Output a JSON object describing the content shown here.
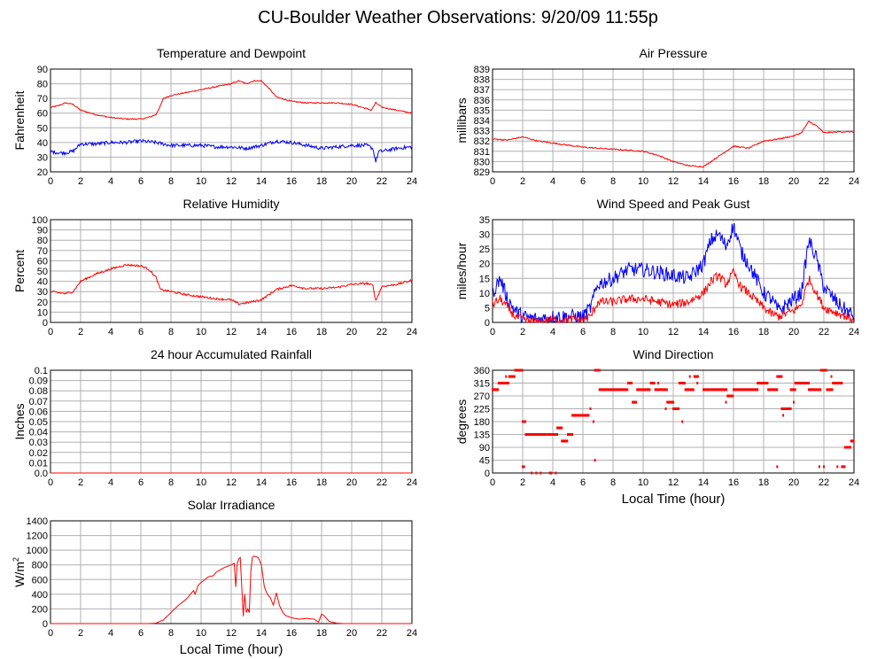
{
  "page_title": "CU-Boulder Weather Observations: 9/20/09 11:55p",
  "x_ticks": [
    "0",
    "2",
    "4",
    "6",
    "8",
    "10",
    "12",
    "14",
    "16",
    "18",
    "20",
    "22",
    "24"
  ],
  "time_axis_label": "Local Time (hour)",
  "colors": {
    "red": "#ff0000",
    "blue": "#0000ff",
    "grid": "#b0b0b0",
    "axis": "#000000"
  },
  "chart_data": [
    {
      "id": "temp",
      "type": "line",
      "title": "Temperature and Dewpoint",
      "ylabel": "Fahrenheit",
      "xlabel": "",
      "xlim": [
        0,
        24
      ],
      "ylim": [
        20,
        90
      ],
      "y_ticks": [
        "20",
        "30",
        "40",
        "50",
        "60",
        "70",
        "80",
        "90"
      ],
      "grid": true,
      "series": [
        {
          "color": "#ff0000",
          "noise": 0.4,
          "x": [
            0,
            0.5,
            1,
            1.5,
            2,
            3,
            4,
            5,
            6,
            6.5,
            7,
            7.3,
            7.5,
            8,
            9,
            10,
            11,
            12,
            12.5,
            13,
            13.5,
            14,
            14.5,
            15,
            16,
            17,
            18,
            19,
            20,
            21,
            21.3,
            21.6,
            22,
            23,
            24
          ],
          "y": [
            64,
            65,
            67,
            66,
            62,
            59,
            57,
            56,
            56,
            57,
            59,
            65,
            70,
            72,
            74,
            76,
            78,
            80,
            82,
            80,
            82,
            82,
            77,
            71,
            68,
            67,
            67,
            67,
            66,
            63,
            62,
            67,
            64,
            62,
            60
          ]
        },
        {
          "color": "#0000ff",
          "noise": 1.2,
          "x": [
            0,
            0.5,
            1,
            1.5,
            2,
            3,
            4,
            5,
            6,
            7,
            8,
            9,
            10,
            11,
            12,
            13,
            14,
            15,
            16,
            17,
            18,
            19,
            20,
            21,
            21.4,
            21.6,
            21.8,
            22,
            23,
            24
          ],
          "y": [
            34,
            33,
            33,
            34,
            39,
            39,
            40,
            40,
            41,
            40,
            38,
            38,
            38,
            37,
            37,
            36,
            38,
            41,
            40,
            38,
            36,
            37,
            38,
            38,
            36,
            27,
            34,
            34,
            36,
            37
          ]
        }
      ]
    },
    {
      "id": "pressure",
      "type": "line",
      "title": "Air Pressure",
      "ylabel": "millibars",
      "xlabel": "",
      "xlim": [
        0,
        24
      ],
      "ylim": [
        829,
        839
      ],
      "y_ticks": [
        "829",
        "830",
        "831",
        "832",
        "833",
        "834",
        "835",
        "836",
        "837",
        "838",
        "839"
      ],
      "grid": true,
      "series": [
        {
          "color": "#ff0000",
          "noise": 0.06,
          "x": [
            0,
            1,
            2,
            3,
            4,
            5,
            6,
            7,
            8,
            9,
            10,
            11,
            12,
            13,
            14,
            15,
            16,
            17,
            18,
            19,
            20,
            20.5,
            21,
            21.5,
            22,
            23,
            24
          ],
          "y": [
            832.2,
            832.1,
            832.4,
            832.0,
            831.8,
            831.6,
            831.4,
            831.3,
            831.2,
            831.1,
            831.0,
            830.6,
            830.0,
            829.6,
            829.5,
            830.5,
            831.5,
            831.3,
            832.0,
            832.2,
            832.5,
            832.8,
            833.9,
            833.5,
            832.8,
            832.9,
            832.9
          ]
        }
      ]
    },
    {
      "id": "humidity",
      "type": "line",
      "title": "Relative Humidity",
      "ylabel": "Percent",
      "xlabel": "",
      "xlim": [
        0,
        24
      ],
      "ylim": [
        0,
        100
      ],
      "y_ticks": [
        "0",
        "10",
        "20",
        "30",
        "40",
        "50",
        "60",
        "70",
        "80",
        "90",
        "100"
      ],
      "grid": true,
      "series": [
        {
          "color": "#ff0000",
          "noise": 1.0,
          "x": [
            0,
            0.5,
            1,
            1.5,
            2,
            3,
            4,
            5,
            6,
            6.5,
            7,
            7.3,
            8,
            9,
            10,
            11,
            12,
            12.5,
            13,
            14,
            15,
            16,
            17,
            18,
            19,
            20,
            21,
            21.4,
            21.6,
            22,
            23,
            24
          ],
          "y": [
            30,
            29,
            28,
            30,
            40,
            47,
            52,
            56,
            55,
            52,
            44,
            32,
            30,
            27,
            25,
            23,
            22,
            18,
            19,
            22,
            32,
            36,
            33,
            33,
            34,
            37,
            38,
            36,
            21,
            35,
            37,
            41
          ]
        }
      ]
    },
    {
      "id": "wind",
      "type": "line",
      "title": "Wind Speed and Peak Gust",
      "ylabel": "miles/hour",
      "xlabel": "",
      "xlim": [
        0,
        24
      ],
      "ylim": [
        0,
        35
      ],
      "y_ticks": [
        "0",
        "5",
        "10",
        "15",
        "20",
        "25",
        "30",
        "35"
      ],
      "grid": true,
      "series": [
        {
          "color": "#0000ff",
          "noise": 2.5,
          "x": [
            0,
            0.5,
            1,
            1.5,
            2,
            3,
            4,
            5,
            6,
            6.5,
            7,
            8,
            9,
            10,
            11,
            12,
            13,
            14,
            14.5,
            15,
            15.5,
            16,
            16.5,
            17,
            18,
            18.5,
            19,
            20,
            20.5,
            21,
            21.5,
            22,
            23,
            24
          ],
          "y": [
            10,
            15,
            8,
            4,
            2,
            1,
            2,
            2,
            2,
            5,
            13,
            15,
            18,
            18,
            17,
            16,
            15,
            20,
            28,
            30,
            26,
            33,
            24,
            20,
            10,
            8,
            4,
            8,
            10,
            28,
            22,
            12,
            6,
            2
          ]
        },
        {
          "color": "#ff0000",
          "noise": 1.5,
          "x": [
            0,
            0.5,
            1,
            1.5,
            2,
            3,
            4,
            5,
            6,
            6.5,
            7,
            8,
            9,
            10,
            11,
            12,
            13,
            14,
            14.5,
            15,
            15.5,
            16,
            16.5,
            17,
            18,
            18.5,
            19,
            20,
            20.5,
            21,
            21.5,
            22,
            23,
            24
          ],
          "y": [
            6,
            8,
            5,
            2,
            1,
            0,
            1,
            1,
            1,
            2,
            7,
            7,
            8,
            8,
            7,
            6,
            7,
            10,
            14,
            16,
            13,
            17,
            12,
            10,
            5,
            3,
            2,
            4,
            6,
            15,
            10,
            5,
            3,
            1
          ]
        }
      ]
    },
    {
      "id": "rain",
      "type": "line",
      "title": "24 hour Accumulated Rainfall",
      "ylabel": "Inches",
      "xlabel": "",
      "xlim": [
        0,
        24
      ],
      "ylim": [
        0,
        0.1
      ],
      "y_ticks": [
        "0.0",
        "0.01",
        "0.02",
        "0.03",
        "0.04",
        "0.05",
        "0.06",
        "0.07",
        "0.08",
        "0.09",
        "0.1"
      ],
      "grid": true,
      "series": [
        {
          "color": "#ff0000",
          "noise": 0,
          "x": [
            0,
            24
          ],
          "y": [
            0,
            0
          ]
        }
      ]
    },
    {
      "id": "winddir",
      "type": "scatter",
      "title": "Wind Direction",
      "ylabel": "degrees",
      "xlabel": "Local Time (hour)",
      "xlim": [
        0,
        24
      ],
      "ylim": [
        0,
        360
      ],
      "y_ticks": [
        "0",
        "45",
        "90",
        "135",
        "180",
        "225",
        "270",
        "315",
        "360"
      ],
      "grid": true,
      "series": [
        {
          "color": "#ff0000",
          "segments": [
            [
              0,
              0.4,
              292
            ],
            [
              0.4,
              1.1,
              315
            ],
            [
              1.1,
              1.5,
              338
            ],
            [
              1.5,
              2.0,
              360
            ],
            [
              2.0,
              2.2,
              180
            ],
            [
              2.2,
              3.6,
              135
            ],
            [
              3.7,
              3.9,
              135
            ],
            [
              4.0,
              4.3,
              135
            ],
            [
              4.3,
              4.6,
              158
            ],
            [
              4.6,
              5.0,
              112
            ],
            [
              5.0,
              5.3,
              135
            ],
            [
              5.3,
              6.4,
              202
            ],
            [
              6.8,
              7.1,
              360
            ],
            [
              7.1,
              9.0,
              292
            ],
            [
              9.0,
              9.3,
              315
            ],
            [
              9.3,
              9.6,
              248
            ],
            [
              9.6,
              10.5,
              292
            ],
            [
              10.5,
              10.8,
              315
            ],
            [
              10.8,
              11.6,
              292
            ],
            [
              11.6,
              12.0,
              248
            ],
            [
              12.0,
              12.4,
              225
            ],
            [
              12.4,
              12.8,
              315
            ],
            [
              12.8,
              13.4,
              292
            ],
            [
              13.4,
              13.7,
              338
            ],
            [
              14.0,
              15.0,
              292
            ],
            [
              15.0,
              15.6,
              292
            ],
            [
              15.6,
              16.0,
              270
            ],
            [
              16.0,
              17.0,
              292
            ],
            [
              17.0,
              17.6,
              292
            ],
            [
              17.6,
              18.3,
              315
            ],
            [
              18.3,
              18.9,
              292
            ],
            [
              18.9,
              19.2,
              338
            ],
            [
              19.2,
              19.8,
              225
            ],
            [
              19.8,
              20.1,
              292
            ],
            [
              20.1,
              21.0,
              315
            ],
            [
              21.0,
              21.8,
              292
            ],
            [
              21.8,
              22.2,
              360
            ],
            [
              22.2,
              22.6,
              292
            ],
            [
              22.6,
              23.2,
              315
            ],
            [
              23.2,
              23.4,
              22
            ],
            [
              23.4,
              23.8,
              90
            ],
            [
              23.8,
              24.0,
              112
            ]
          ],
          "points": [
            [
              0.9,
              338
            ],
            [
              1.6,
              360
            ],
            [
              2.0,
              22
            ],
            [
              2.1,
              22
            ],
            [
              2.6,
              0
            ],
            [
              2.9,
              0
            ],
            [
              3.2,
              0
            ],
            [
              3.8,
              0
            ],
            [
              3.9,
              0
            ],
            [
              4.2,
              0
            ],
            [
              6.5,
              225
            ],
            [
              6.7,
              180
            ],
            [
              6.8,
              45
            ],
            [
              7.0,
              360
            ],
            [
              9.4,
              248
            ],
            [
              11.0,
              315
            ],
            [
              11.5,
              225
            ],
            [
              12.0,
              248
            ],
            [
              12.6,
              180
            ],
            [
              13.1,
              338
            ],
            [
              13.6,
              315
            ],
            [
              15.5,
              248
            ],
            [
              18.9,
              22
            ],
            [
              19.3,
              202
            ],
            [
              19.7,
              225
            ],
            [
              20.0,
              248
            ],
            [
              21.7,
              22
            ],
            [
              22.0,
              22
            ],
            [
              22.5,
              338
            ],
            [
              22.9,
              22
            ]
          ]
        }
      ]
    },
    {
      "id": "solar",
      "type": "line",
      "title": "Solar Irradiance",
      "ylabel": "W/m",
      "ylabel_sup": "2",
      "xlabel": "Local Time (hour)",
      "xlim": [
        0,
        24
      ],
      "ylim": [
        0,
        1400
      ],
      "y_ticks": [
        "0",
        "200",
        "400",
        "600",
        "800",
        "1000",
        "1200",
        "1400"
      ],
      "grid": true,
      "series": [
        {
          "color": "#ff0000",
          "noise": 0,
          "x": [
            0,
            6.5,
            7,
            7.5,
            8,
            8.5,
            9,
            9.5,
            9.6,
            9.8,
            10,
            10.5,
            10.8,
            11,
            11.5,
            12,
            12.2,
            12.3,
            12.4,
            12.5,
            12.6,
            12.8,
            12.9,
            13.0,
            13.1,
            13.2,
            13.3,
            13.4,
            13.5,
            13.8,
            14.0,
            14.2,
            14.4,
            14.6,
            14.8,
            15.0,
            15.2,
            15.4,
            15.6,
            16,
            16.5,
            17,
            17.5,
            17.8,
            18,
            18.2,
            18.5,
            19,
            19.5,
            20,
            24
          ],
          "y": [
            0,
            0,
            5,
            50,
            150,
            250,
            330,
            450,
            400,
            520,
            560,
            640,
            650,
            700,
            760,
            800,
            820,
            500,
            820,
            880,
            900,
            100,
            400,
            150,
            200,
            150,
            700,
            900,
            920,
            900,
            800,
            500,
            400,
            350,
            250,
            420,
            250,
            160,
            110,
            80,
            60,
            70,
            60,
            20,
            130,
            100,
            30,
            5,
            0,
            0,
            0
          ]
        }
      ]
    }
  ]
}
